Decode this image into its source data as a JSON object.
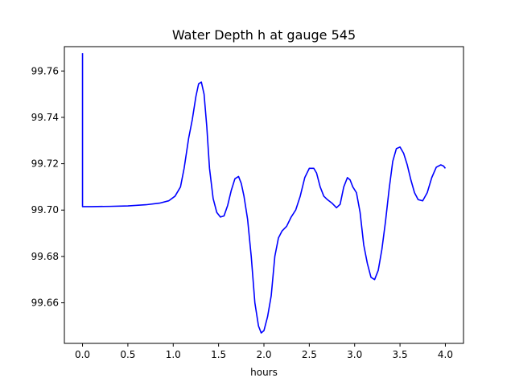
{
  "chart_data": {
    "type": "line",
    "title": "Water Depth h at gauge 545",
    "xlabel": "hours",
    "ylabel": "",
    "xlim": [
      -0.2,
      4.2
    ],
    "ylim": [
      99.6425,
      99.7705
    ],
    "xticks": [
      0.0,
      0.5,
      1.0,
      1.5,
      2.0,
      2.5,
      3.0,
      3.5,
      4.0
    ],
    "xtick_labels": [
      "0.0",
      "0.5",
      "1.0",
      "1.5",
      "2.0",
      "2.5",
      "3.0",
      "3.5",
      "4.0"
    ],
    "yticks": [
      99.66,
      99.68,
      99.7,
      99.72,
      99.74,
      99.76
    ],
    "ytick_labels": [
      "99.66",
      "99.68",
      "99.70",
      "99.72",
      "99.74",
      "99.76"
    ],
    "grid": false,
    "series": [
      {
        "color": "#0000ff",
        "x": [
          0.0,
          0.0,
          0.002,
          0.1,
          0.3,
          0.5,
          0.7,
          0.85,
          0.95,
          1.02,
          1.08,
          1.12,
          1.17,
          1.21,
          1.25,
          1.28,
          1.31,
          1.34,
          1.37,
          1.4,
          1.44,
          1.48,
          1.52,
          1.56,
          1.6,
          1.64,
          1.68,
          1.72,
          1.75,
          1.78,
          1.82,
          1.86,
          1.9,
          1.94,
          1.97,
          2.0,
          2.04,
          2.08,
          2.12,
          2.16,
          2.2,
          2.25,
          2.3,
          2.35,
          2.4,
          2.45,
          2.5,
          2.55,
          2.58,
          2.62,
          2.66,
          2.7,
          2.75,
          2.8,
          2.84,
          2.88,
          2.92,
          2.95,
          2.98,
          3.02,
          3.06,
          3.1,
          3.14,
          3.18,
          3.22,
          3.26,
          3.3,
          3.34,
          3.38,
          3.42,
          3.46,
          3.5,
          3.54,
          3.58,
          3.62,
          3.66,
          3.7,
          3.75,
          3.8,
          3.85,
          3.9,
          3.95,
          3.98,
          4.0
        ],
        "y": [
          99.7677,
          99.7015,
          99.7015,
          99.7015,
          99.7016,
          99.7018,
          99.7023,
          99.703,
          99.704,
          99.706,
          99.71,
          99.718,
          99.731,
          99.739,
          99.749,
          99.7545,
          99.7552,
          99.75,
          99.736,
          99.718,
          99.705,
          99.699,
          99.697,
          99.6975,
          99.702,
          99.7085,
          99.7135,
          99.7145,
          99.7115,
          99.706,
          99.696,
          99.68,
          99.66,
          99.65,
          99.647,
          99.648,
          99.654,
          99.663,
          99.68,
          99.688,
          99.691,
          99.693,
          99.697,
          99.7,
          99.706,
          99.714,
          99.718,
          99.718,
          99.716,
          99.71,
          99.706,
          99.7045,
          99.703,
          99.701,
          99.7025,
          99.71,
          99.714,
          99.713,
          99.71,
          99.7075,
          99.699,
          99.685,
          99.677,
          99.671,
          99.67,
          99.674,
          99.683,
          99.695,
          99.709,
          99.721,
          99.7265,
          99.7272,
          99.7245,
          99.7195,
          99.713,
          99.7075,
          99.7045,
          99.704,
          99.7075,
          99.714,
          99.7185,
          99.7195,
          99.719,
          99.718
        ]
      }
    ]
  }
}
